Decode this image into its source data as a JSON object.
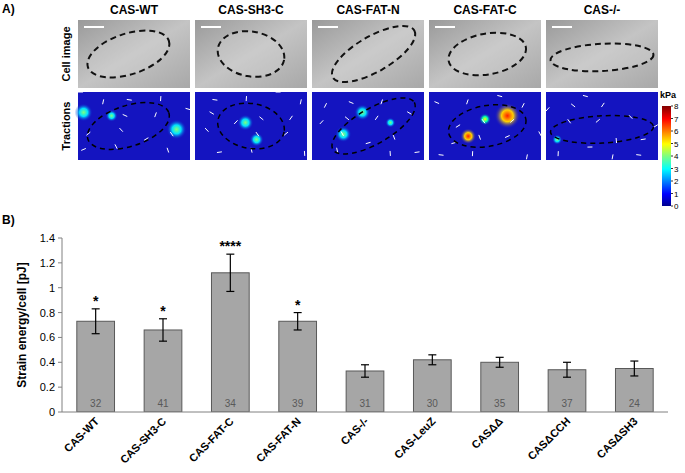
{
  "chart_data": {
    "type": "bar",
    "title": "B)",
    "y_label": "Strain energy/cell [pJ]",
    "categories": [
      "CAS-WT",
      "CAS-SH3-C",
      "CAS-FAT-C",
      "CAS-FAT-N",
      "CAS-/-",
      "CAS-LeuZ",
      "CASΔΔ",
      "CASΔCCH",
      "CASΔSH3"
    ],
    "values": [
      0.73,
      0.66,
      1.12,
      0.73,
      0.33,
      0.42,
      0.4,
      0.34,
      0.35
    ],
    "errors": [
      0.1,
      0.09,
      0.15,
      0.07,
      0.05,
      0.04,
      0.04,
      0.06,
      0.06
    ],
    "n_cells": [
      32,
      41,
      34,
      39,
      31,
      30,
      35,
      37,
      24
    ],
    "significance": [
      "*",
      "*",
      "****",
      "*",
      null,
      null,
      null,
      null,
      null
    ],
    "color": "#a6a6a6",
    "ylim": [
      0,
      1.4
    ],
    "yticks": [
      0,
      0.2,
      0.4,
      0.6,
      0.8,
      1,
      1.2,
      1.4
    ],
    "grid": false
  },
  "panel_a": {
    "title": "A)",
    "columns": [
      "CAS-WT",
      "CAS-SH3-C",
      "CAS-FAT-N",
      "CAS-FAT-C",
      "CAS-/-"
    ],
    "rows": [
      "Cell image",
      "Tractions"
    ],
    "colorbar": {
      "label": "kPa",
      "range": [
        0,
        8
      ],
      "ticks": [
        0,
        1,
        2,
        3,
        4,
        5,
        6,
        7,
        8
      ]
    }
  }
}
